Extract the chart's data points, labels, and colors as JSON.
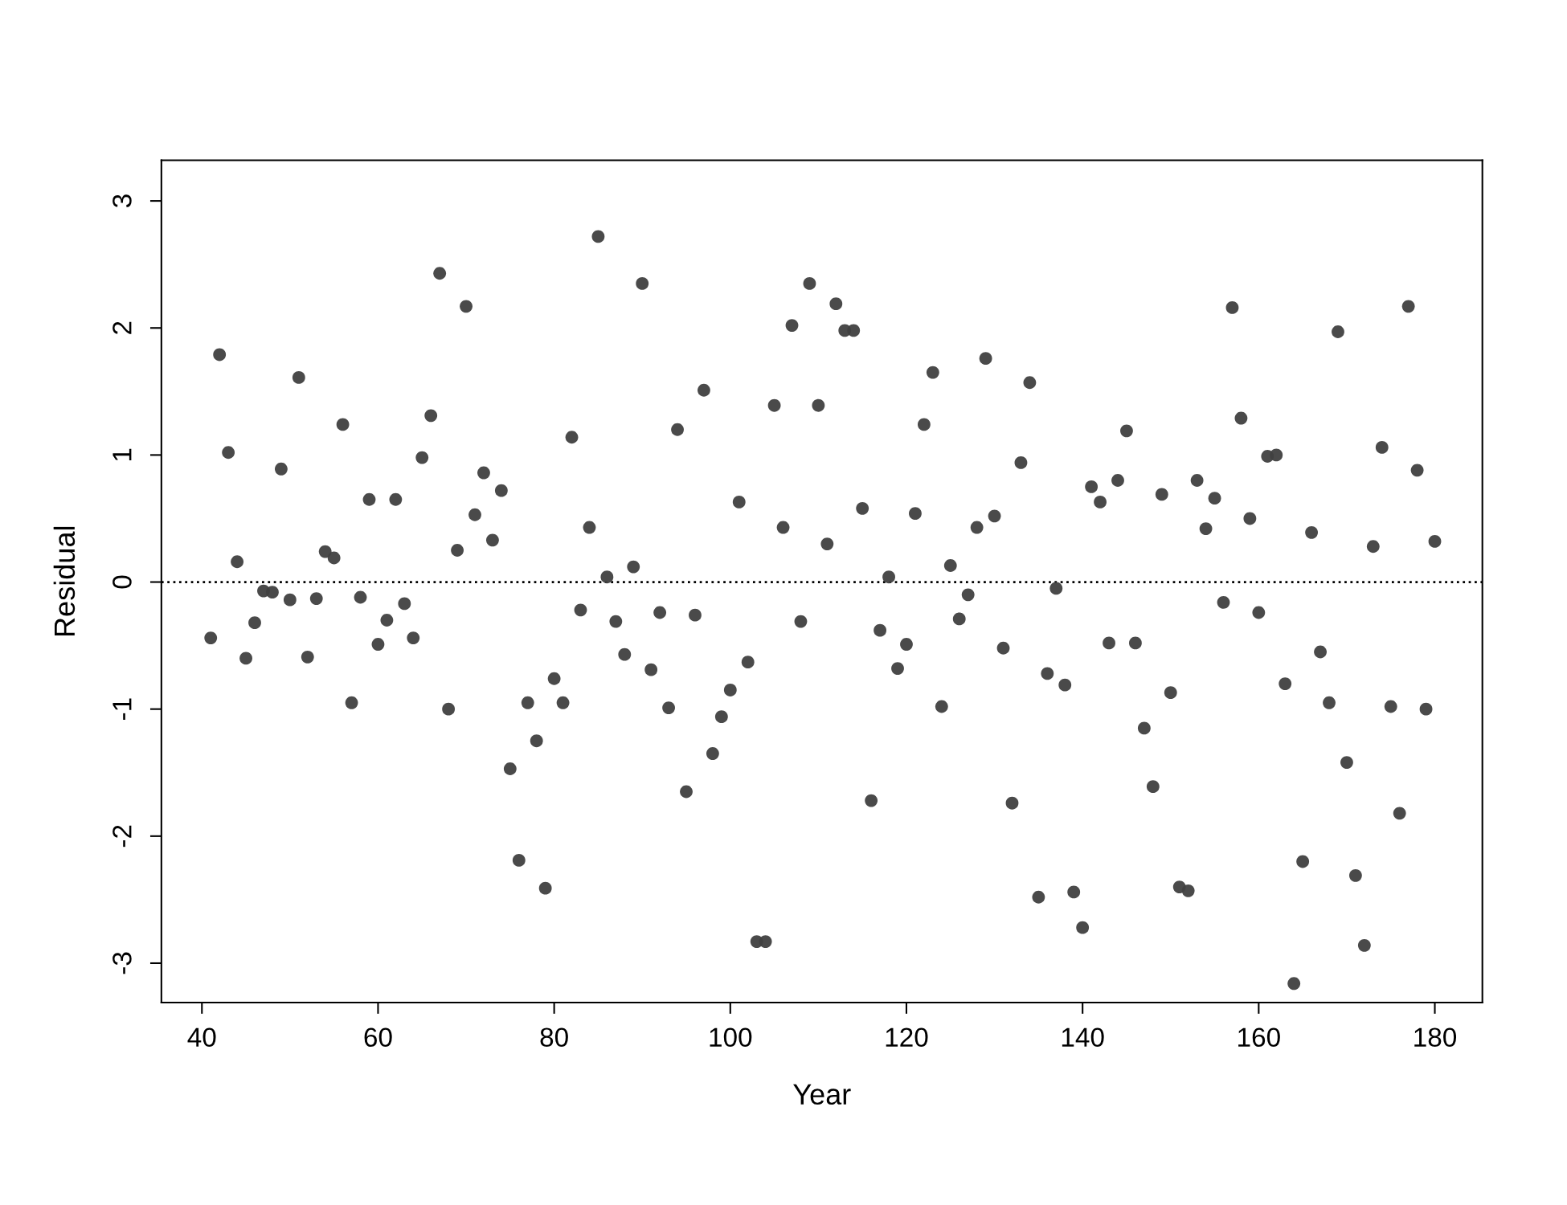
{
  "chart_data": {
    "type": "scatter",
    "xlabel": "Year",
    "ylabel": "Residual",
    "x": [
      41,
      42,
      43,
      44,
      45,
      46,
      47,
      48,
      49,
      50,
      51,
      52,
      53,
      54,
      55,
      56,
      57,
      58,
      59,
      60,
      61,
      62,
      63,
      64,
      65,
      66,
      67,
      68,
      69,
      70,
      71,
      72,
      73,
      74,
      75,
      76,
      77,
      78,
      79,
      80,
      81,
      82,
      83,
      84,
      85,
      86,
      87,
      88,
      89,
      90,
      91,
      92,
      93,
      94,
      95,
      96,
      97,
      98,
      99,
      100,
      101,
      102,
      103,
      104,
      105,
      106,
      107,
      108,
      109,
      110,
      111,
      112,
      113,
      114,
      115,
      116,
      117,
      118,
      119,
      120,
      121,
      122,
      123,
      124,
      125,
      126,
      127,
      128,
      129,
      130,
      131,
      132,
      133,
      134,
      135,
      136,
      137,
      138,
      139,
      140,
      141,
      142,
      143,
      144,
      145,
      146,
      147,
      148,
      149,
      150,
      151,
      152,
      153,
      154,
      155,
      156,
      157,
      158,
      159,
      160,
      161,
      162,
      163,
      164,
      165,
      166,
      167,
      168,
      169,
      170,
      171,
      172,
      173,
      174,
      175,
      176,
      177,
      178,
      179,
      180
    ],
    "series": [
      {
        "color": "#404040",
        "marker": "circle",
        "values": [
          -0.44,
          1.79,
          1.02,
          0.16,
          -0.6,
          -0.32,
          -0.07,
          -0.08,
          0.89,
          -0.14,
          1.61,
          -0.59,
          -0.13,
          0.24,
          0.19,
          1.24,
          -0.95,
          -0.12,
          0.65,
          -0.49,
          -0.3,
          0.65,
          -0.17,
          -0.44,
          0.98,
          1.31,
          2.43,
          -1.0,
          0.25,
          2.17,
          0.53,
          0.86,
          0.33,
          0.72,
          -1.47,
          -2.19,
          -0.95,
          -1.25,
          -2.41,
          -0.76,
          -0.95,
          1.14,
          -0.22,
          0.43,
          2.72,
          0.04,
          -0.31,
          -0.57,
          0.12,
          2.35,
          -0.69,
          -0.24,
          -0.99,
          1.2,
          -1.65,
          -0.26,
          1.51,
          -1.35,
          -1.06,
          -0.85,
          0.63,
          -0.63,
          -2.83,
          -2.83,
          1.39,
          0.43,
          2.02,
          -0.31,
          2.35,
          1.39,
          0.3,
          2.19,
          1.98,
          1.98,
          0.58,
          -1.72,
          -0.38,
          0.04,
          -0.68,
          -0.49,
          0.54,
          1.24,
          1.65,
          -0.98,
          0.13,
          -0.29,
          -0.1,
          0.43,
          1.76,
          0.52,
          -0.52,
          -1.74,
          0.94,
          1.57,
          -2.48,
          -0.72,
          -0.05,
          -0.81,
          -2.44,
          -2.72,
          0.75,
          0.63,
          -0.48,
          0.8,
          1.19,
          -0.48,
          -1.15,
          -1.61,
          0.69,
          -0.87,
          -2.4,
          -2.43,
          0.8,
          0.42,
          0.66,
          -0.16,
          2.16,
          1.29,
          0.5,
          -0.24,
          0.99,
          1.0,
          -0.8,
          -3.16,
          -2.2,
          0.39,
          -0.55,
          -0.95,
          1.97,
          -1.42,
          -2.31,
          -2.86,
          0.28,
          1.06,
          -0.98,
          -1.82,
          2.17,
          0.88,
          -1.0,
          0.32
        ]
      }
    ],
    "xlim": [
      35.4,
      185.4
    ],
    "ylim": [
      -3.31,
      3.32
    ],
    "xticks": [
      40,
      60,
      80,
      100,
      120,
      140,
      160,
      180
    ],
    "yticks": [
      -3,
      -2,
      -1,
      0,
      1,
      2,
      3
    ],
    "ref_lines": [
      {
        "axis": "y",
        "value": 0,
        "color": "#000000",
        "line_style": "dotted"
      }
    ],
    "grid": false,
    "legend": false
  }
}
